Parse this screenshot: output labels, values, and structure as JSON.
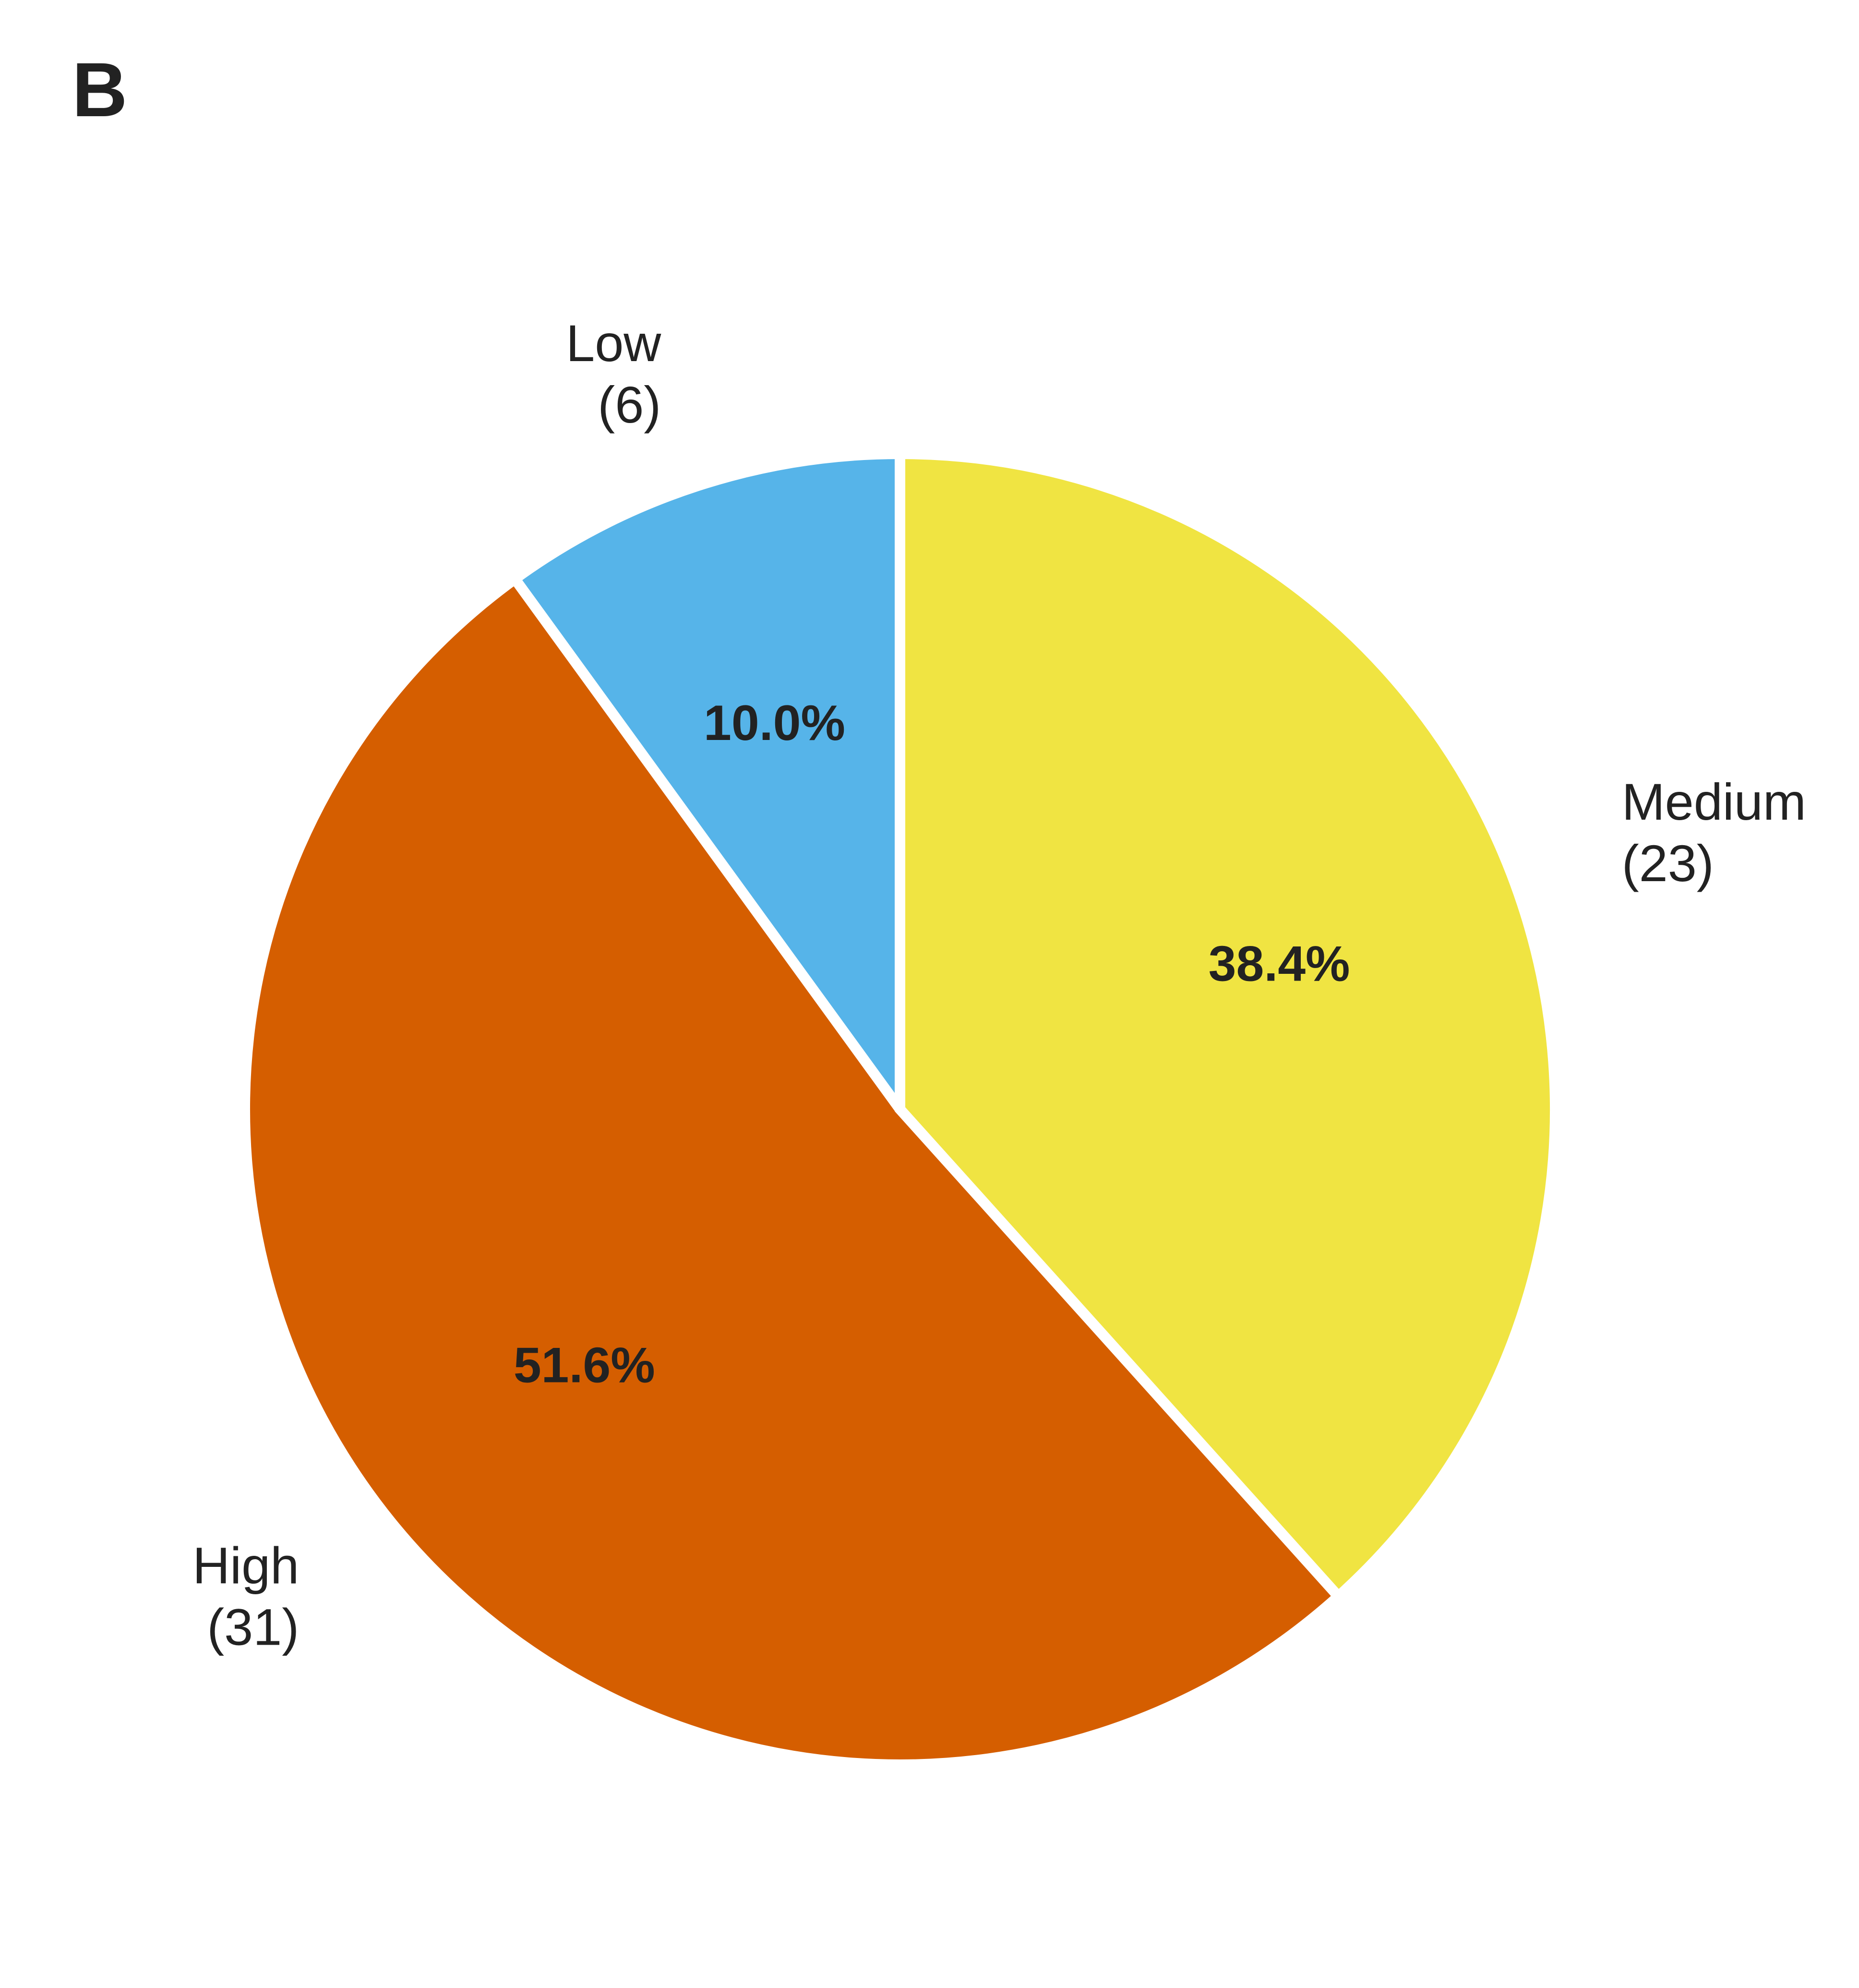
{
  "panel_label": "B",
  "chart_data": {
    "type": "pie",
    "title": "",
    "start_angle": "12 o'clock, counter-clockwise",
    "slices": [
      {
        "label": "Low",
        "count": 6,
        "count_text": "(6)",
        "percent": 10.0,
        "percent_text": "10.0%",
        "color": "#56B4E9"
      },
      {
        "label": "High",
        "count": 31,
        "count_text": "(31)",
        "percent": 51.6,
        "percent_text": "51.6%",
        "color": "#D55E00"
      },
      {
        "label": "Medium",
        "count": 23,
        "count_text": "(23)",
        "percent": 38.4,
        "percent_text": "38.4%",
        "color": "#F0E442"
      }
    ],
    "slice_edge_color": "#ffffff",
    "text_color": "#222222"
  }
}
